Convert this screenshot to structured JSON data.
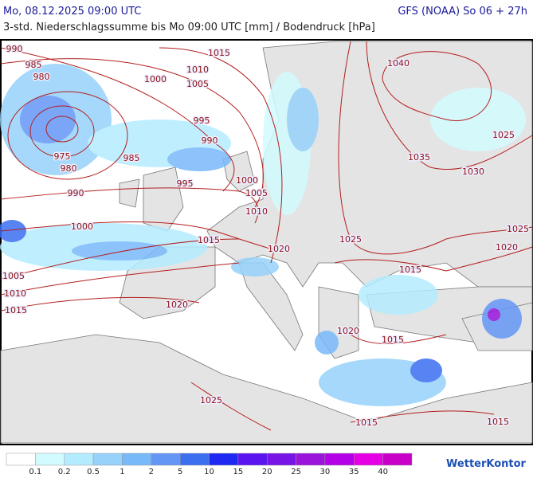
{
  "header": {
    "left": "Mo, 08.12.2025 09:00 UTC",
    "right": "GFS (NOAA) So 06 + 27h",
    "subtitle": "3-std. Niederschlagssumme bis Mo 09:00 UTC [mm] / Bodendruck [hPa]"
  },
  "isobar_labels": [
    990,
    985,
    980,
    1015,
    1010,
    1000,
    1005,
    995,
    990,
    975,
    980,
    985,
    995,
    990,
    1000,
    1005,
    1010,
    1000,
    1015,
    1020,
    1005,
    1010,
    1015,
    1020,
    1040,
    1035,
    1030,
    1025,
    1025,
    1025,
    1020,
    1015,
    1020,
    1015,
    1025,
    1015,
    1015
  ],
  "legend": {
    "colors": [
      "#ffffff",
      "#d2fbff",
      "#b4ecff",
      "#96d2fa",
      "#78b9fa",
      "#6496f5",
      "#3c6ef0",
      "#1e28f0",
      "#5a14f0",
      "#7814e6",
      "#9a14dc",
      "#b400e6",
      "#e600e6",
      "#c800c8"
    ],
    "labels": [
      0.1,
      0.2,
      0.5,
      1,
      2,
      5,
      10,
      15,
      20,
      25,
      30,
      35,
      40
    ]
  },
  "logo": "WetterKontor"
}
